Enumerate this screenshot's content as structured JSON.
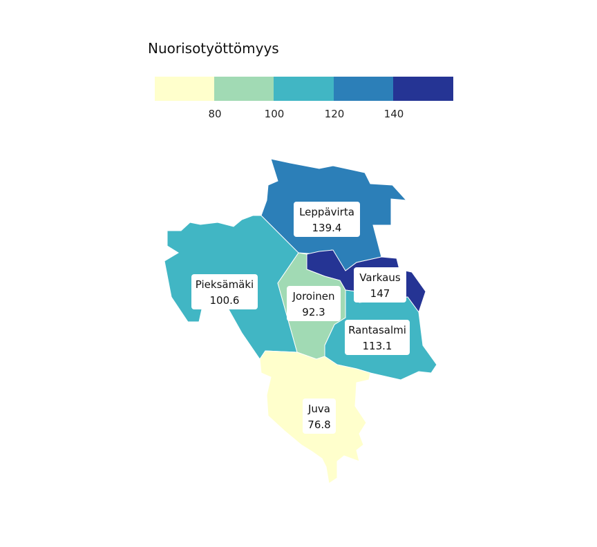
{
  "legend": {
    "title": "Nuorisotyöttömyys",
    "bins": [
      {
        "from": null,
        "to": 80,
        "color": "#ffffcc"
      },
      {
        "from": 80,
        "to": 100,
        "color": "#a1dab4"
      },
      {
        "from": 100,
        "to": 120,
        "color": "#41b6c4"
      },
      {
        "from": 120,
        "to": 140,
        "color": "#2c7fb8"
      },
      {
        "from": 140,
        "to": null,
        "color": "#253494"
      }
    ],
    "ticks": [
      "80",
      "100",
      "120",
      "140"
    ]
  },
  "regions": [
    {
      "id": "pieksamaki",
      "name": "Pieksämäki",
      "value": "100.6",
      "color": "#41b6c4"
    },
    {
      "id": "leppavirta",
      "name": "Leppävirta",
      "value": "139.4",
      "color": "#2c7fb8"
    },
    {
      "id": "varkaus",
      "name": "Varkaus",
      "value": "147",
      "color": "#253494"
    },
    {
      "id": "joroinen",
      "name": "Joroinen",
      "value": "92.3",
      "color": "#a1dab4"
    },
    {
      "id": "rantasalmi",
      "name": "Rantasalmi",
      "value": "113.1",
      "color": "#41b6c4"
    },
    {
      "id": "juva",
      "name": "Juva",
      "value": "76.8",
      "color": "#ffffcc"
    }
  ]
}
